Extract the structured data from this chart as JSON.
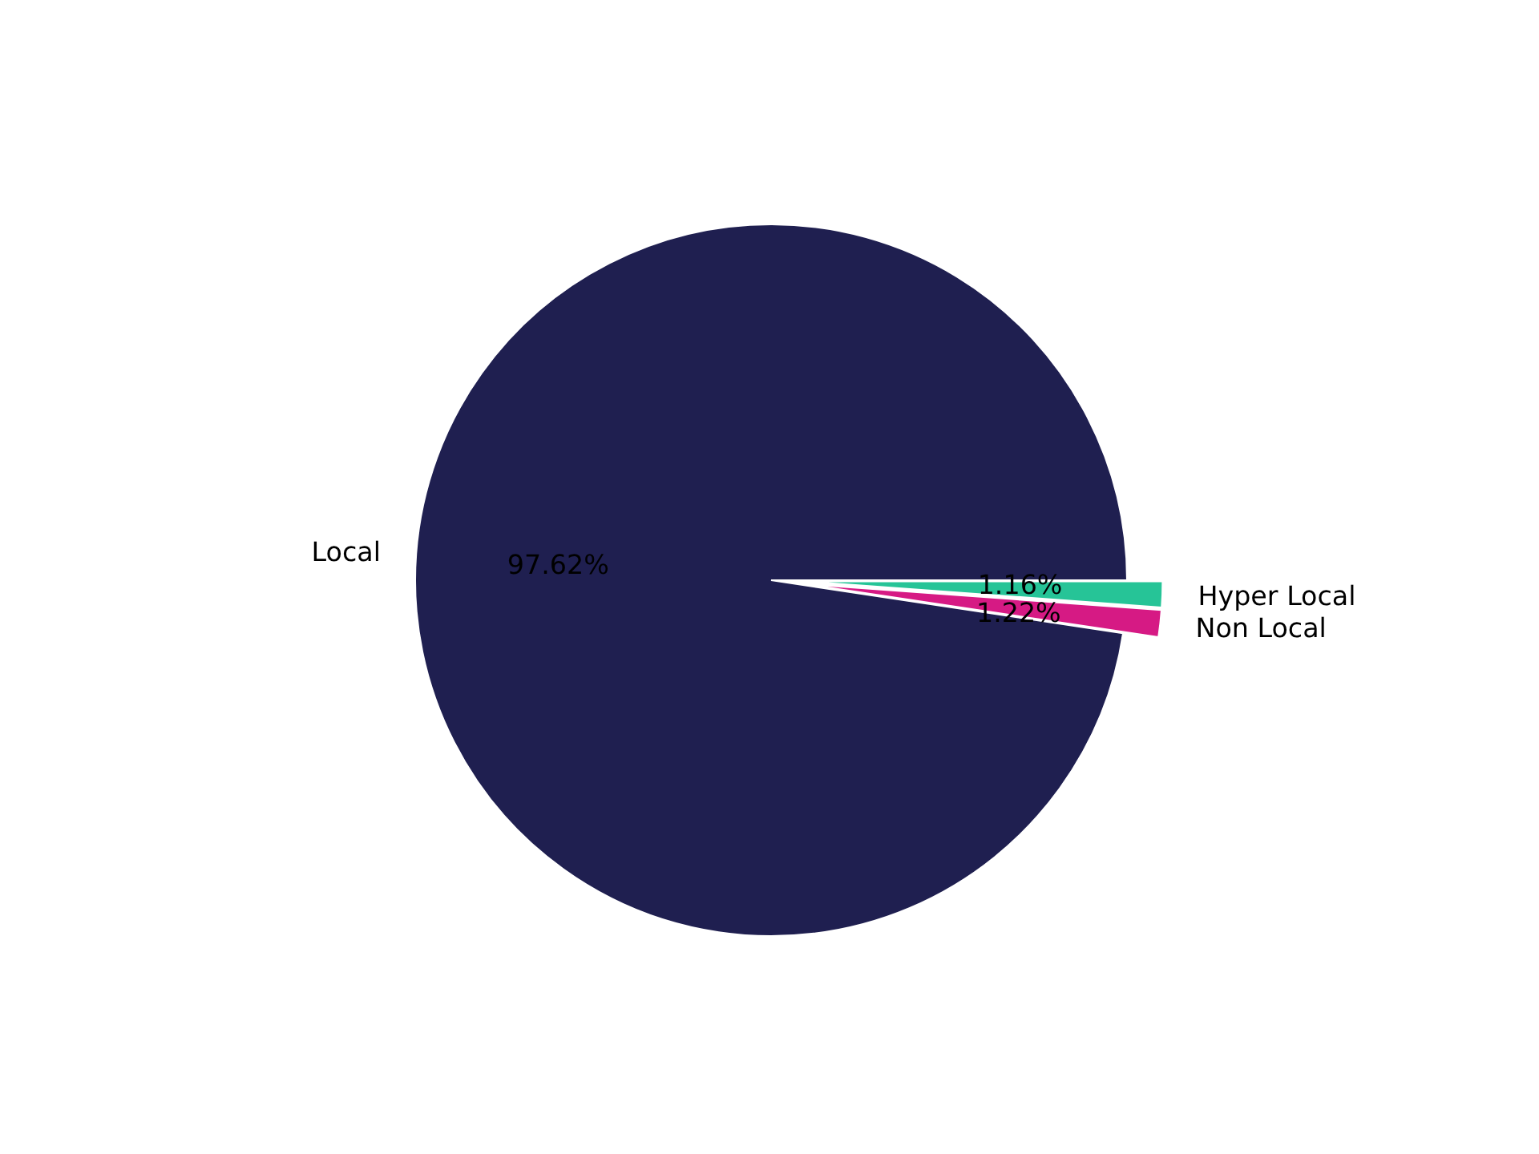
{
  "chart_data": {
    "type": "pie",
    "categories": [
      "Local",
      "Non Local",
      "Hyper Local"
    ],
    "values": [
      97.62,
      1.22,
      1.16
    ],
    "colors": [
      "#1f1f50",
      "#d61a84",
      "#26c497"
    ],
    "value_labels": [
      "97.62%",
      "1.22%",
      "1.16%"
    ]
  }
}
